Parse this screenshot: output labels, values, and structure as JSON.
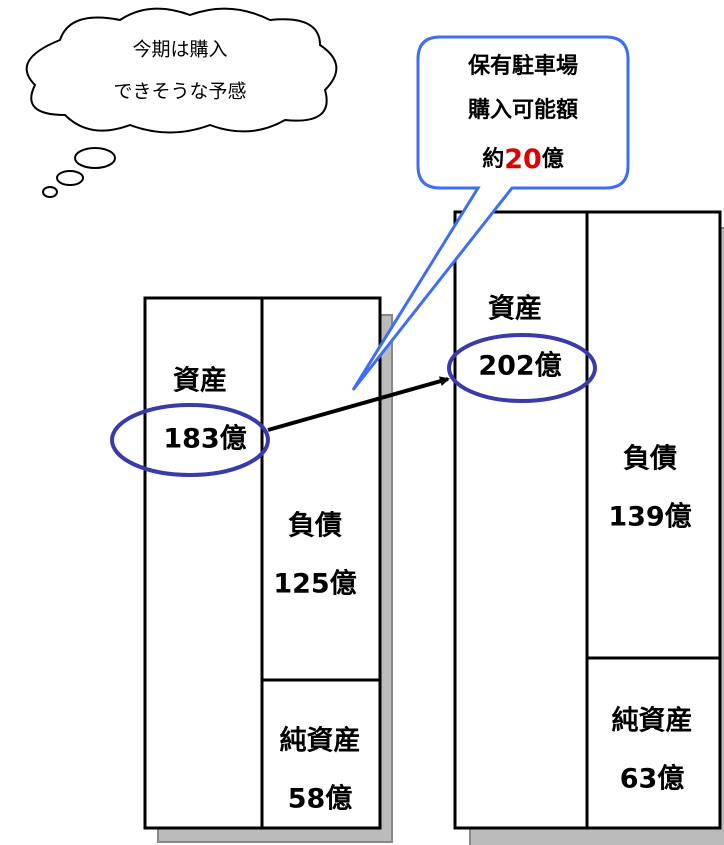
{
  "thought_bubble": {
    "lines": [
      "今期は購入",
      "できそうな予感"
    ]
  },
  "speech_bubble": {
    "lines": [
      "保有駐車場",
      "購入可能額"
    ],
    "amount": {
      "prefix": "約",
      "number": "20",
      "suffix": "億"
    }
  },
  "balance_sheets": [
    {
      "assets": {
        "label": "資産",
        "amount": "183億"
      },
      "liabilities": {
        "label": "負債",
        "amount": "125億"
      },
      "net_assets": {
        "label": "純資産",
        "amount": "58億"
      }
    },
    {
      "assets": {
        "label": "資産",
        "amount": "202億"
      },
      "liabilities": {
        "label": "負債",
        "amount": "139億"
      },
      "net_assets": {
        "label": "純資産",
        "amount": "63億"
      }
    }
  ]
}
